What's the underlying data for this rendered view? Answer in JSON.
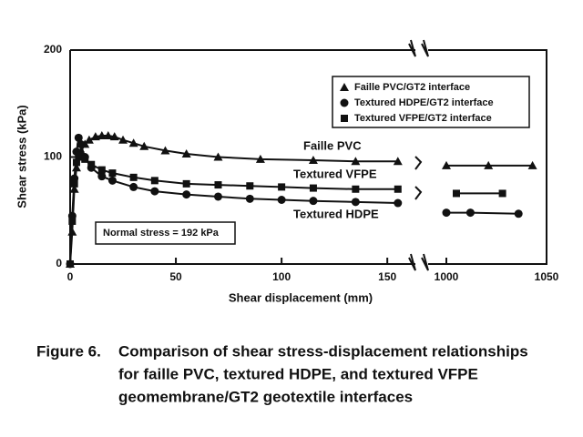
{
  "chart_data": {
    "type": "line",
    "y_label": "Shear stress (kPa)",
    "x_label": "Shear displacement (mm)",
    "xsegments": [
      [
        0,
        165
      ],
      [
        990,
        1050
      ]
    ],
    "xticks": [
      0,
      50,
      100,
      150,
      1000,
      1050
    ],
    "ylim": [
      0,
      200
    ],
    "yticks": [
      0,
      100,
      200
    ],
    "legend_position": "upper right",
    "series": [
      {
        "name": "Faille PVC/GT2 interface",
        "color": "#111111",
        "marker": "triangle",
        "x": [
          0,
          1,
          2,
          3,
          4,
          5,
          7,
          9,
          12,
          15,
          18,
          21,
          25,
          30,
          35,
          45,
          55,
          70,
          90,
          115,
          135,
          155,
          1000,
          1021,
          1043
        ],
        "values": [
          0,
          30,
          70,
          90,
          100,
          105,
          112,
          116,
          119,
          120,
          120,
          119,
          116,
          113,
          110,
          106,
          103,
          100,
          98,
          97,
          96,
          96,
          92,
          92,
          92
        ]
      },
      {
        "name": "Textured HDPE/GT2 interface",
        "color": "#111111",
        "marker": "circle",
        "x": [
          0,
          1,
          2,
          3,
          4,
          5,
          7,
          10,
          15,
          20,
          30,
          40,
          55,
          70,
          85,
          100,
          115,
          135,
          155,
          1000,
          1012,
          1036
        ],
        "values": [
          0,
          45,
          80,
          105,
          118,
          112,
          100,
          90,
          82,
          78,
          72,
          68,
          65,
          63,
          61,
          60,
          59,
          58,
          57,
          48,
          48,
          47
        ]
      },
      {
        "name": "Textured VFPE/GT2 interface",
        "color": "#111111",
        "marker": "square",
        "x": [
          0,
          1,
          2,
          3,
          4,
          5,
          7,
          10,
          15,
          20,
          30,
          40,
          55,
          70,
          85,
          100,
          115,
          135,
          155,
          1005,
          1028
        ],
        "values": [
          0,
          40,
          75,
          95,
          104,
          102,
          98,
          93,
          88,
          85,
          81,
          78,
          75,
          74,
          73,
          72,
          71,
          70,
          70,
          66,
          66
        ]
      }
    ],
    "annotations": [
      "Faille PVC",
      "Textured VFPE",
      "Textured HDPE",
      "Normal stress = 192 kPa"
    ],
    "caption": [
      "Figure 6.",
      "Comparison of shear stress-displacement relationships",
      "for faille PVC, textured HDPE, and textured VFPE",
      "geomembrane/GT2 geotextile interfaces"
    ]
  }
}
